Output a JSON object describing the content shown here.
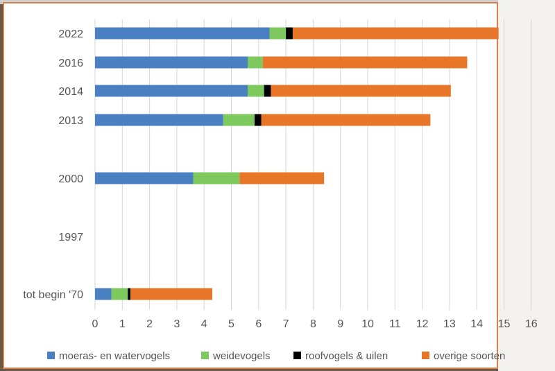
{
  "chart_data": {
    "type": "bar",
    "orientation": "horizontal",
    "stacked": true,
    "title": "",
    "xlabel": "",
    "ylabel": "",
    "xlim": [
      0,
      16
    ],
    "xticks": [
      "0",
      "1",
      "2",
      "3",
      "4",
      "5",
      "6",
      "7",
      "8",
      "9",
      "10",
      "11",
      "12",
      "13",
      "14",
      "15",
      "16"
    ],
    "grid": "vertical",
    "legend_position": "bottom",
    "categories": [
      "2022",
      "2016",
      "2014",
      "2013",
      "2000",
      "1997",
      "tot begin '70"
    ],
    "series": [
      {
        "name": "moeras- en watervogels",
        "color": "#4a7fc1",
        "values": [
          6.4,
          5.6,
          5.6,
          4.7,
          3.6,
          0,
          0.6
        ]
      },
      {
        "name": "weidevogels",
        "color": "#7dc95e",
        "values": [
          0.6,
          0.55,
          0.6,
          1.15,
          1.7,
          0,
          0.6
        ]
      },
      {
        "name": "roofvogels & uilen",
        "color": "#000000",
        "values": [
          0.25,
          0,
          0.25,
          0.25,
          0,
          0,
          0.1
        ]
      },
      {
        "name": "overige soorten",
        "color": "#e87628",
        "values": [
          7.55,
          7.5,
          6.6,
          6.2,
          3.1,
          0,
          3.0
        ]
      }
    ]
  }
}
